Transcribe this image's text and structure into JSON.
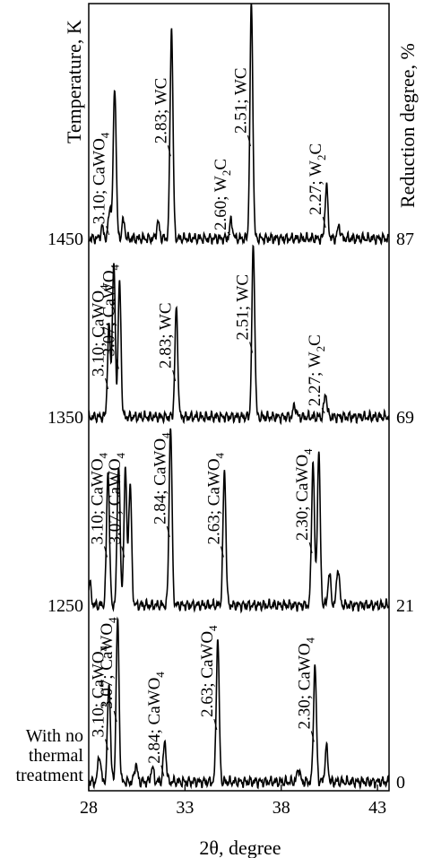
{
  "chart_data": {
    "type": "line",
    "title": "",
    "xlabel": "2θ, degree",
    "ylabel_left": "Temperature, K",
    "ylabel_right": "Reduction degree, %",
    "xlim": [
      28,
      43.6
    ],
    "x_ticks": [
      "28",
      "33",
      "38",
      "43"
    ],
    "x_tick_values": [
      28,
      33,
      38,
      43
    ],
    "grid": false,
    "series": [
      {
        "left_label": "With no thermal treatment",
        "right_label": "0",
        "peaks": [
          {
            "x": 28.55,
            "h": 30
          },
          {
            "x": 29.05,
            "h": 110
          },
          {
            "x": 29.5,
            "h": 180
          },
          {
            "x": 30.45,
            "h": 20
          },
          {
            "x": 31.3,
            "h": 16
          },
          {
            "x": 31.95,
            "h": 45
          },
          {
            "x": 34.7,
            "h": 160
          },
          {
            "x": 38.9,
            "h": 15
          },
          {
            "x": 39.75,
            "h": 130
          },
          {
            "x": 40.35,
            "h": 38
          }
        ]
      },
      {
        "left_label": "1250",
        "right_label": "21",
        "peaks": [
          {
            "x": 28.05,
            "h": 24
          },
          {
            "x": 29.0,
            "h": 150
          },
          {
            "x": 29.55,
            "h": 160
          },
          {
            "x": 29.9,
            "h": 150
          },
          {
            "x": 30.15,
            "h": 135
          },
          {
            "x": 32.25,
            "h": 200
          },
          {
            "x": 35.05,
            "h": 150
          },
          {
            "x": 39.65,
            "h": 160
          },
          {
            "x": 39.95,
            "h": 170
          },
          {
            "x": 40.5,
            "h": 35
          },
          {
            "x": 40.95,
            "h": 42
          }
        ]
      },
      {
        "left_label": "1350",
        "right_label": "69",
        "peaks": [
          {
            "x": 29.05,
            "h": 100
          },
          {
            "x": 29.3,
            "h": 170
          },
          {
            "x": 29.6,
            "h": 150
          },
          {
            "x": 32.55,
            "h": 120
          },
          {
            "x": 36.55,
            "h": 190
          },
          {
            "x": 38.7,
            "h": 13
          },
          {
            "x": 40.3,
            "h": 26
          }
        ]
      },
      {
        "left_label": "1450",
        "right_label": "87",
        "peaks": [
          {
            "x": 28.7,
            "h": 12
          },
          {
            "x": 29.1,
            "h": 35
          },
          {
            "x": 29.35,
            "h": 170
          },
          {
            "x": 29.8,
            "h": 20
          },
          {
            "x": 31.6,
            "h": 18
          },
          {
            "x": 32.3,
            "h": 235
          },
          {
            "x": 35.4,
            "h": 20
          },
          {
            "x": 36.45,
            "h": 260
          },
          {
            "x": 40.35,
            "h": 58
          },
          {
            "x": 41.0,
            "h": 14
          }
        ]
      }
    ],
    "annotations": [
      {
        "series": 3,
        "text": "3.10; CaWO",
        "sub": "4",
        "x": 29.1
      },
      {
        "series": 3,
        "text": "2.83; WC",
        "sub": "",
        "x": 32.3
      },
      {
        "series": 3,
        "text": "2.60; W",
        "sub": "2",
        "suffix": "C",
        "x": 35.4
      },
      {
        "series": 3,
        "text": "2.51; WC",
        "sub": "",
        "x": 36.45
      },
      {
        "series": 3,
        "text": "2.27; W",
        "sub": "2",
        "suffix": "C",
        "x": 40.35
      },
      {
        "series": 2,
        "text": "3.10; CaWO",
        "sub": "4",
        "x": 29.05
      },
      {
        "series": 2,
        "text": "3.07; CaWO",
        "sub": "4",
        "x": 29.6
      },
      {
        "series": 2,
        "text": "2.83; WC",
        "sub": "",
        "x": 32.55
      },
      {
        "series": 2,
        "text": "2.51; WC",
        "sub": "",
        "x": 36.55
      },
      {
        "series": 2,
        "text": "2.27; W",
        "sub": "2",
        "suffix": "C",
        "x": 40.3
      },
      {
        "series": 1,
        "text": "3.10; CaWO",
        "sub": "4",
        "x": 29.0
      },
      {
        "series": 1,
        "text": "3.07; CaWO",
        "sub": "4",
        "x": 29.9
      },
      {
        "series": 1,
        "text": "2.84; CaWO",
        "sub": "4",
        "x": 32.25
      },
      {
        "series": 1,
        "text": "2.63; CaWO",
        "sub": "4",
        "x": 35.05
      },
      {
        "series": 1,
        "text": "2.30; CaWO",
        "sub": "4",
        "x": 39.65
      },
      {
        "series": 0,
        "text": "3.10; CaWO",
        "sub": "4",
        "x": 29.05
      },
      {
        "series": 0,
        "text": "3.07; CaWO",
        "sub": "4",
        "x": 29.5
      },
      {
        "series": 0,
        "text": "2.84; CaWO",
        "sub": "4",
        "x": 31.95
      },
      {
        "series": 0,
        "text": "2.63; CaWO",
        "sub": "4",
        "x": 34.7
      },
      {
        "series": 0,
        "text": "2.30; CaWO",
        "sub": "4",
        "x": 39.75
      }
    ]
  }
}
